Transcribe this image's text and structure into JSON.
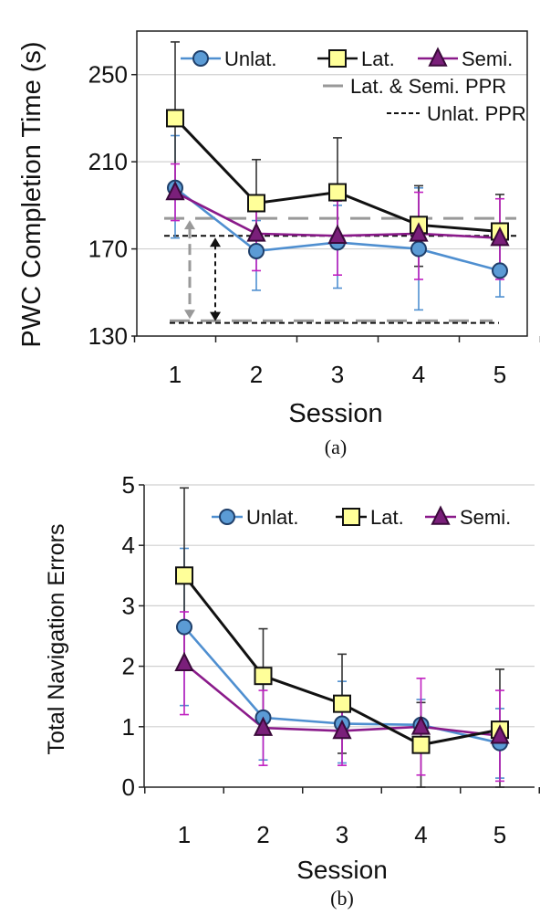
{
  "colors": {
    "unlat": "#4f8fd0",
    "unlat_fill": "#5b9bd5",
    "lat": "#111111",
    "lat_fill": "#ffff99",
    "semi": "#8a1a8a",
    "semi_fill": "#7a1f7a",
    "err_unlat": "#4f8fd0",
    "err_lat": "#333333",
    "err_semi": "#c020c0",
    "ppr_lat_semi": "#999999",
    "ppr_unlat": "#111111",
    "grid": "#d0d0d0"
  },
  "chart_data": [
    {
      "type": "line",
      "caption": "(a)",
      "xlabel": "Session",
      "ylabel": "PWC Completion Time (s)",
      "x": [
        1,
        2,
        3,
        4,
        5
      ],
      "ylim": [
        130,
        270
      ],
      "yticks": [
        130,
        170,
        210,
        250
      ],
      "grid": true,
      "legend_position": "top-right",
      "series": [
        {
          "key": "unlat",
          "name": "Unlat.",
          "marker": "circle",
          "values": [
            198,
            169,
            173,
            170,
            160
          ],
          "err_upper": [
            222,
            183,
            190,
            198,
            176
          ],
          "err_lower": [
            175,
            151,
            152,
            142,
            148
          ]
        },
        {
          "key": "lat",
          "name": "Lat.",
          "marker": "square",
          "values": [
            230,
            191,
            196,
            181,
            178
          ],
          "err_upper": [
            265,
            211,
            221,
            199,
            195
          ],
          "err_lower": [
            200,
            171,
            171,
            162,
            160
          ]
        },
        {
          "key": "semi",
          "name": "Semi.",
          "marker": "triangle",
          "values": [
            196,
            177,
            176,
            177,
            175
          ],
          "err_upper": [
            209,
            192,
            192,
            196,
            193
          ],
          "err_lower": [
            183,
            160,
            158,
            156,
            156
          ]
        }
      ],
      "ppr_lines": [
        {
          "key": "lat_semi",
          "name": "Lat. & Semi. PPR",
          "style": "long-dash",
          "top": 184,
          "bottom": 137
        },
        {
          "key": "unlat",
          "name": "Unlat. PPR",
          "style": "short-dash",
          "top": 176,
          "bottom": 136
        }
      ]
    },
    {
      "type": "line",
      "caption": "(b)",
      "xlabel": "Session",
      "ylabel": "Total Navigation Errors",
      "x": [
        1,
        2,
        3,
        4,
        5
      ],
      "ylim": [
        0,
        5
      ],
      "yticks": [
        0,
        1,
        2,
        3,
        4,
        5
      ],
      "grid": true,
      "legend_position": "top-right",
      "series": [
        {
          "key": "unlat",
          "name": "Unlat.",
          "marker": "circle",
          "values": [
            2.65,
            1.15,
            1.05,
            1.03,
            0.73
          ],
          "err_upper": [
            3.95,
            1.9,
            1.75,
            1.45,
            1.3
          ],
          "err_lower": [
            1.35,
            0.45,
            0.4,
            0.6,
            0.15
          ]
        },
        {
          "key": "lat",
          "name": "Lat.",
          "marker": "square",
          "values": [
            3.5,
            1.84,
            1.38,
            0.7,
            0.95
          ],
          "err_upper": [
            4.95,
            2.62,
            2.2,
            1.4,
            1.95
          ],
          "err_lower": [
            2.05,
            1.06,
            0.56,
            0.0,
            0.0
          ]
        },
        {
          "key": "semi",
          "name": "Semi.",
          "marker": "triangle",
          "values": [
            2.05,
            0.98,
            0.93,
            1.0,
            0.85
          ],
          "err_upper": [
            2.9,
            1.6,
            1.5,
            1.8,
            1.6
          ],
          "err_lower": [
            1.2,
            0.36,
            0.36,
            0.2,
            0.1
          ]
        }
      ]
    }
  ]
}
